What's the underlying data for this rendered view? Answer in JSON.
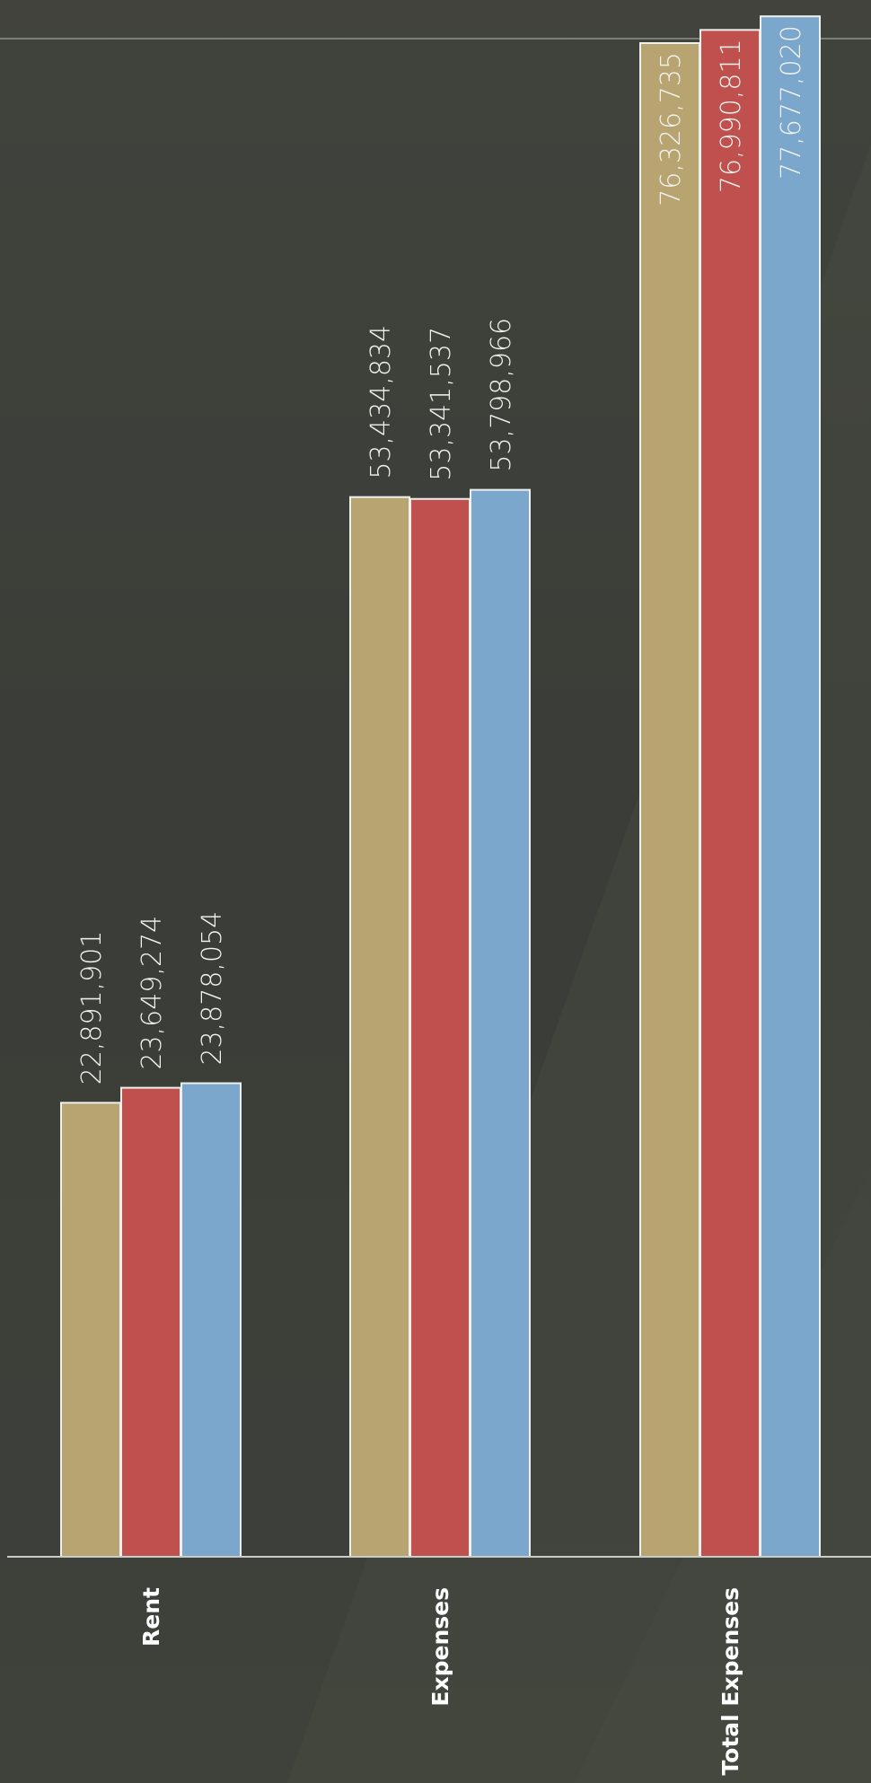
{
  "chart_data": {
    "type": "bar",
    "orientation": "vertical",
    "categories": [
      "Rent",
      "Expenses",
      "Total Expenses"
    ],
    "series": [
      {
        "color": "#b7a470",
        "values": [
          22891901,
          53434834,
          76326735
        ]
      },
      {
        "color": "#c0504d",
        "values": [
          23649274,
          53341537,
          76990811
        ]
      },
      {
        "color": "#7ba7cc",
        "values": [
          23878054,
          53798966,
          77677020
        ]
      }
    ],
    "data_labels": [
      [
        "22,891,901",
        "53,434,834",
        "76,326,735"
      ],
      [
        "23,649,274",
        "53,341,537",
        "76,990,811"
      ],
      [
        "23,878,054",
        "53,798,966",
        "77,677,020"
      ]
    ],
    "ylim": [
      0,
      78500000
    ],
    "grid": false,
    "legend": "none",
    "text_rotation": "labels rotated 90 degrees counter-clockwise"
  }
}
